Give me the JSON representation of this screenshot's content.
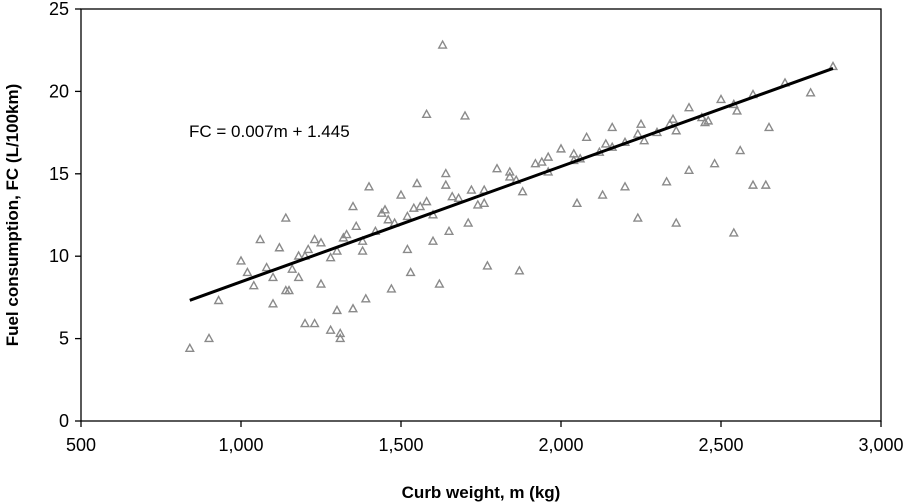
{
  "chart_data": {
    "type": "scatter",
    "xlabel": "Curb weight, m (kg)",
    "ylabel": "Fuel consumption, FC (L/100km)",
    "xlim": [
      500,
      3000
    ],
    "ylim": [
      0,
      25
    ],
    "xticks": [
      "500",
      "1,000",
      "1,500",
      "2,000",
      "2,500",
      "3,000"
    ],
    "yticks": [
      "0",
      "5",
      "10",
      "15",
      "20",
      "25"
    ],
    "grid": false,
    "marker": "triangle-open",
    "colors": {
      "points": "#8a8a8a",
      "trendline": "#000000"
    },
    "trendline": {
      "equation": "FC = 0.007m + 1.445",
      "slope": 0.007,
      "intercept": 1.445,
      "x_range": [
        840,
        2850
      ]
    },
    "series": [
      {
        "x": [
          840,
          900,
          930,
          1000,
          1020,
          1040,
          1060,
          1080,
          1100,
          1100,
          1120,
          1140,
          1150,
          1160,
          1180,
          1200,
          1210,
          1230,
          1250,
          1280,
          1300,
          1310,
          1330,
          1350,
          1380,
          1400,
          1420,
          1450,
          1480,
          1500,
          1520,
          1550,
          1580,
          1600,
          1640,
          1680,
          1720,
          1760,
          1800,
          1840,
          1880,
          1920,
          1960,
          2000,
          2040,
          2080,
          2120,
          2160,
          2200,
          2250,
          2300,
          2350,
          2400,
          2450,
          2500,
          2550,
          2600,
          2650,
          2700,
          2780,
          2850,
          1630,
          1580,
          1700,
          1350,
          1470,
          1530,
          1390,
          1620,
          1770,
          1870,
          2240,
          2360,
          2540,
          1230,
          1280,
          1310,
          1180,
          1140,
          1520,
          1600,
          1650,
          1710,
          2050,
          2130,
          2200,
          2330,
          2400,
          2480,
          2560,
          2600,
          2640,
          1200,
          1250,
          1320,
          1360,
          1460,
          1560,
          1660,
          1760,
          1860,
          1960,
          2060,
          2160,
          2260,
          2360,
          2460,
          1300,
          1380,
          1440,
          1540,
          1640,
          1740,
          1840,
          1940,
          2040,
          2140,
          2240,
          2340,
          2440,
          2540
        ],
        "y": [
          4.4,
          5.0,
          7.3,
          9.7,
          9.0,
          8.2,
          11.0,
          9.3,
          7.1,
          8.7,
          10.5,
          12.3,
          7.9,
          9.2,
          10.0,
          5.9,
          10.4,
          11.0,
          8.3,
          9.9,
          6.7,
          5.3,
          11.3,
          13.0,
          10.3,
          14.2,
          11.5,
          12.8,
          12.0,
          13.7,
          12.4,
          14.4,
          13.3,
          12.5,
          15.0,
          13.5,
          14.0,
          13.2,
          15.3,
          14.8,
          13.9,
          15.6,
          16.0,
          16.5,
          15.8,
          17.2,
          16.3,
          17.8,
          16.9,
          18.0,
          17.5,
          18.3,
          19.0,
          18.1,
          19.5,
          18.8,
          19.8,
          17.8,
          20.5,
          19.9,
          21.5,
          22.8,
          18.6,
          18.5,
          6.8,
          8.0,
          9.0,
          7.4,
          8.3,
          9.4,
          9.1,
          12.3,
          12.0,
          11.4,
          5.9,
          5.5,
          5.0,
          8.7,
          7.9,
          10.4,
          10.9,
          11.5,
          12.0,
          13.2,
          13.7,
          14.2,
          14.5,
          15.2,
          15.6,
          16.4,
          14.3,
          14.3,
          10.0,
          10.8,
          11.1,
          11.8,
          12.2,
          13.0,
          13.6,
          14.0,
          14.6,
          15.1,
          15.9,
          16.6,
          17.0,
          17.6,
          18.2,
          10.3,
          10.9,
          12.6,
          12.9,
          14.3,
          13.1,
          15.1,
          15.7,
          16.2,
          16.8,
          17.4,
          18.0,
          18.4,
          19.2
        ]
      }
    ]
  }
}
